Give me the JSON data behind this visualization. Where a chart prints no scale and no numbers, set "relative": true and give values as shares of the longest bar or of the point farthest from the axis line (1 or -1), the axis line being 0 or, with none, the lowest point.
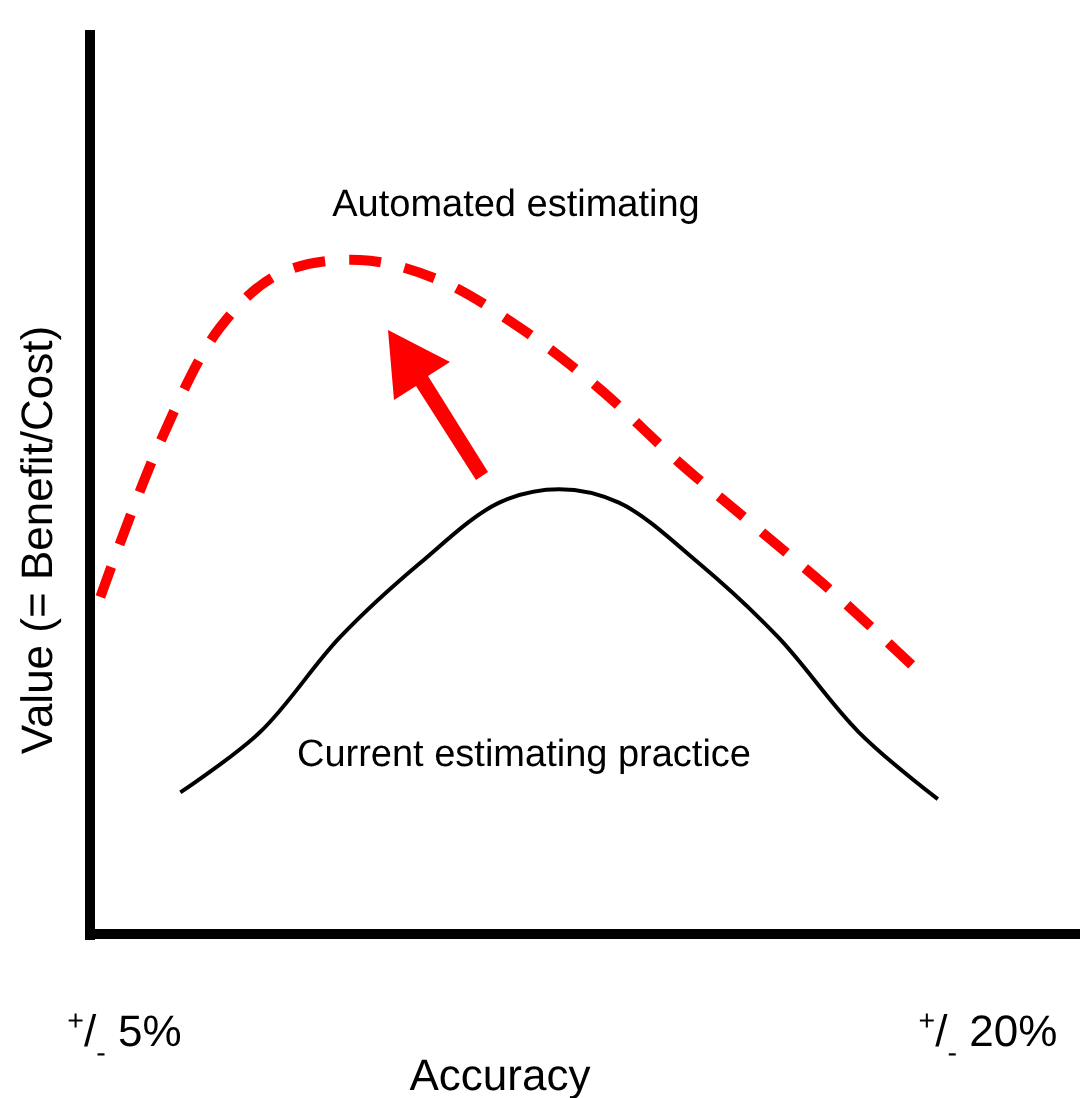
{
  "chart_data": {
    "type": "line",
    "relative": true,
    "xlabel": "Accuracy",
    "ylabel": "Value (= Benefit/Cost)",
    "xlim": [
      4.4,
      21.6
    ],
    "xticks": [
      {
        "value": 5,
        "label": "$^{+}$/$_{-}$ 5%"
      },
      {
        "value": 20,
        "label": "$^{+}$/$_{-}$ 20%"
      }
    ],
    "grid": false,
    "series": [
      {
        "name": "Automated estimating",
        "color": "#ff0000",
        "line_style": "dashed",
        "x": [
          4.58,
          5.62,
          6.66,
          7.7,
          9.09,
          10.47,
          11.86,
          13.24,
          14.63,
          16.02,
          17.4,
          18.79
        ],
        "values": [
          0.5,
          0.73,
          0.9,
          0.98,
          1,
          0.97,
          0.9,
          0.81,
          0.7,
          0.6,
          0.5,
          0.39
        ]
      },
      {
        "name": "Current estimating practice",
        "color": "#000000",
        "line_style": "solid",
        "x": [
          5.97,
          7.36,
          8.74,
          10.13,
          11.51,
          12.55,
          13.59,
          14.98,
          16.36,
          17.75,
          19.13
        ],
        "values": [
          0.21,
          0.3,
          0.44,
          0.55,
          0.64,
          0.66,
          0.64,
          0.55,
          0.44,
          0.3,
          0.2
        ]
      }
    ]
  }
}
